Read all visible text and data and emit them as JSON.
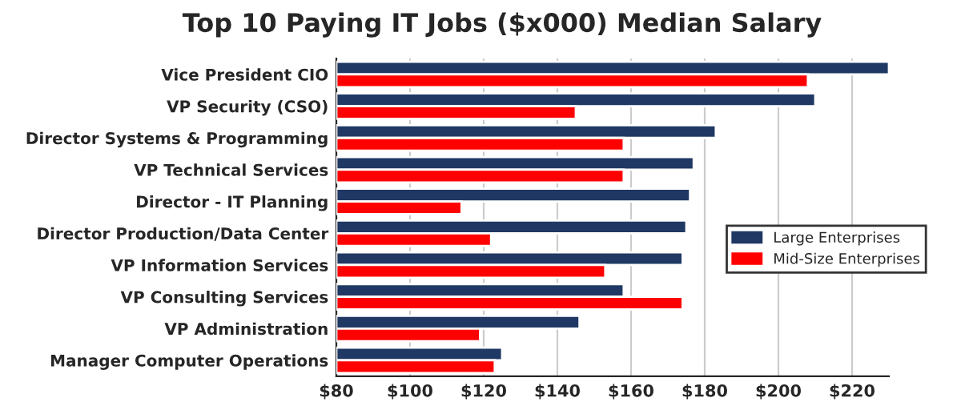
{
  "chart_data": {
    "type": "bar",
    "orientation": "horizontal",
    "title": "Top 10 Paying IT Jobs ($x000) Median Salary",
    "categories": [
      "Vice President CIO",
      "VP Security (CSO)",
      "Director Systems & Programming",
      "VP Technical Services",
      "Director - IT Planning",
      "Director Production/Data Center",
      "VP Information Services",
      "VP Consulting Services",
      "VP Administration",
      "Manager Computer Operations"
    ],
    "series": [
      {
        "name": "Large Enterprises",
        "color": "#1f3864",
        "values": [
          230,
          210,
          183,
          177,
          176,
          175,
          174,
          158,
          146,
          125
        ]
      },
      {
        "name": "Mid-Size Enterprises",
        "color": "#ff0000",
        "values": [
          208,
          145,
          158,
          158,
          114,
          122,
          153,
          174,
          119,
          123
        ]
      }
    ],
    "xlim": [
      80,
      230
    ],
    "xticks": [
      {
        "value": 80,
        "label": "$80"
      },
      {
        "value": 100,
        "label": "$100"
      },
      {
        "value": 120,
        "label": "$120"
      },
      {
        "value": 140,
        "label": "$140"
      },
      {
        "value": 160,
        "label": "$160"
      },
      {
        "value": 180,
        "label": "$180"
      },
      {
        "value": 200,
        "label": "$200"
      },
      {
        "value": 220,
        "label": "$220"
      }
    ],
    "grid": "x",
    "legend": "right"
  }
}
